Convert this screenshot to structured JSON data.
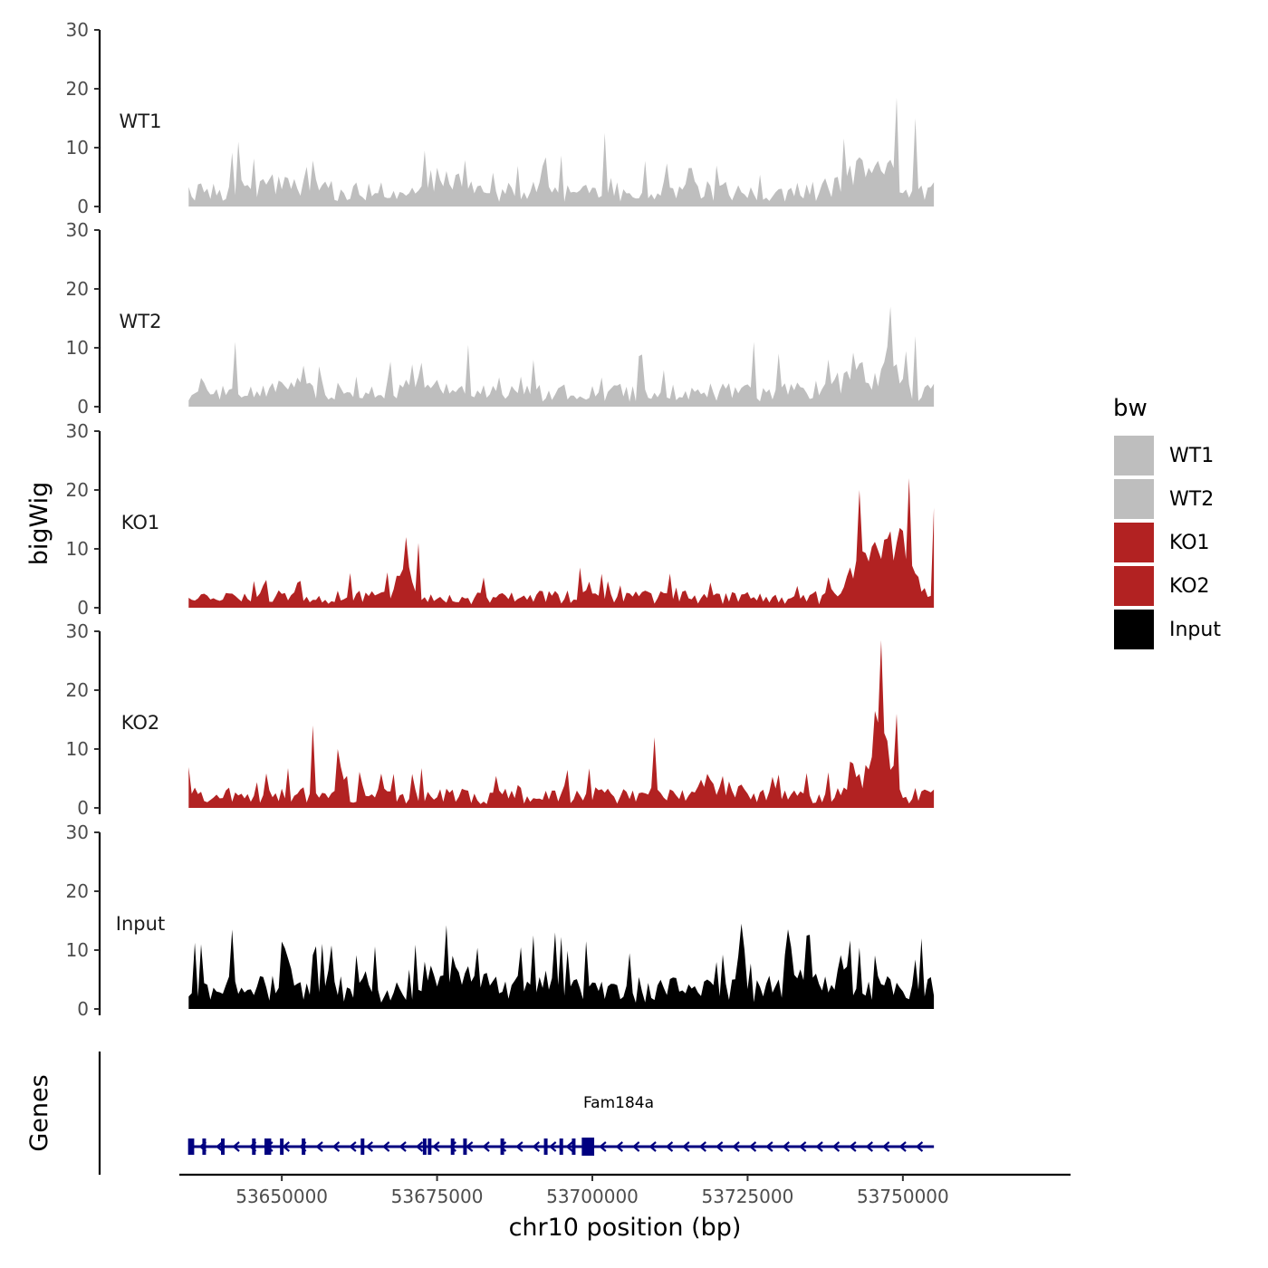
{
  "chart_data": {
    "type": "area",
    "title": "",
    "ylabel": "bigWig",
    "xlabel": "chr10 position (bp)",
    "genes_label": "Genes",
    "xlim": [
      53633500,
      53777000
    ],
    "ylim": [
      0,
      30
    ],
    "yticks": [
      0,
      10,
      20,
      30
    ],
    "xticks": [
      53650000,
      53675000,
      53700000,
      53725000,
      53750000
    ],
    "xtick_labels": [
      "53650000",
      "53675000",
      "53700000",
      "53725000",
      "53750000"
    ],
    "data_range": [
      53635000,
      53755000
    ],
    "bin_size": 500,
    "legend": {
      "title": "bw",
      "position": "right",
      "entries": [
        {
          "label": "WT1",
          "color": "#bebebe"
        },
        {
          "label": "WT2",
          "color": "#bebebe"
        },
        {
          "label": "KO1",
          "color": "#b22222"
        },
        {
          "label": "KO2",
          "color": "#b22222"
        },
        {
          "label": "Input",
          "color": "#000000"
        }
      ]
    },
    "series": [
      {
        "name": "WT1",
        "color": "#bebebe",
        "base": 3.2,
        "peak_max": 18.5,
        "peaks": [
          [
            53747000,
            5.5,
            2200
          ],
          [
            53742000,
            4.0,
            3000
          ],
          [
            53675000,
            2.5,
            4000
          ],
          [
            53650000,
            1.2,
            6000
          ]
        ],
        "spikes": [
          [
            53643000,
            11
          ],
          [
            53673000,
            9.5
          ],
          [
            53702000,
            12.5
          ],
          [
            53749000,
            18.5
          ],
          [
            53752000,
            15
          ]
        ]
      },
      {
        "name": "WT2",
        "color": "#bebebe",
        "base": 3.0,
        "peak_max": 17,
        "peaks": [
          [
            53748000,
            5.5,
            2000
          ],
          [
            53742000,
            4.0,
            3000
          ],
          [
            53672000,
            3.0,
            3500
          ],
          [
            53650000,
            1.2,
            6000
          ]
        ],
        "spikes": [
          [
            53642500,
            11
          ],
          [
            53680000,
            10.5
          ],
          [
            53726000,
            11
          ],
          [
            53748000,
            17
          ],
          [
            53752000,
            12
          ]
        ]
      },
      {
        "name": "KO1",
        "color": "#b22222",
        "base": 2.2,
        "peak_max": 22,
        "peaks": [
          [
            53745000,
            9.0,
            3500
          ],
          [
            53750000,
            8.0,
            2500
          ],
          [
            53670000,
            3.5,
            1500
          ]
        ],
        "spikes": [
          [
            53670000,
            12
          ],
          [
            53672000,
            11
          ],
          [
            53743000,
            20
          ],
          [
            53751000,
            22
          ],
          [
            53755000,
            17
          ]
        ]
      },
      {
        "name": "KO2",
        "color": "#b22222",
        "base": 2.6,
        "peak_max": 28.5,
        "peaks": [
          [
            53746500,
            14.0,
            1200
          ],
          [
            53745000,
            5.0,
            3000
          ],
          [
            53720000,
            2.0,
            4000
          ]
        ],
        "spikes": [
          [
            53655000,
            14
          ],
          [
            53659000,
            10
          ],
          [
            53710000,
            12
          ],
          [
            53746500,
            28.5
          ],
          [
            53749000,
            16
          ]
        ]
      },
      {
        "name": "Input",
        "color": "#000000",
        "base": 4.2,
        "peak_max": 14.5,
        "peaks": [
          [
            53678000,
            2.0,
            4000
          ],
          [
            53694000,
            2.0,
            3000
          ],
          [
            53738000,
            1.5,
            6000
          ]
        ],
        "spikes": [
          [
            53637000,
            11
          ],
          [
            53642000,
            13.5
          ],
          [
            53694000,
            13
          ],
          [
            53724000,
            14.5
          ],
          [
            53753000,
            12
          ]
        ]
      }
    ],
    "gene": {
      "name": "Fam184a",
      "start": 53635000,
      "end": 53755000,
      "strand": "-",
      "color": "#000080",
      "exons": [
        53635200,
        53635600,
        53637500,
        53640500,
        53645500,
        53647500,
        53648000,
        53650000,
        53653500,
        53663000,
        53673000,
        53673800,
        53677500,
        53679500,
        53685500,
        53692500,
        53695000,
        53697000,
        53698800,
        53699000,
        53699300
      ]
    }
  }
}
